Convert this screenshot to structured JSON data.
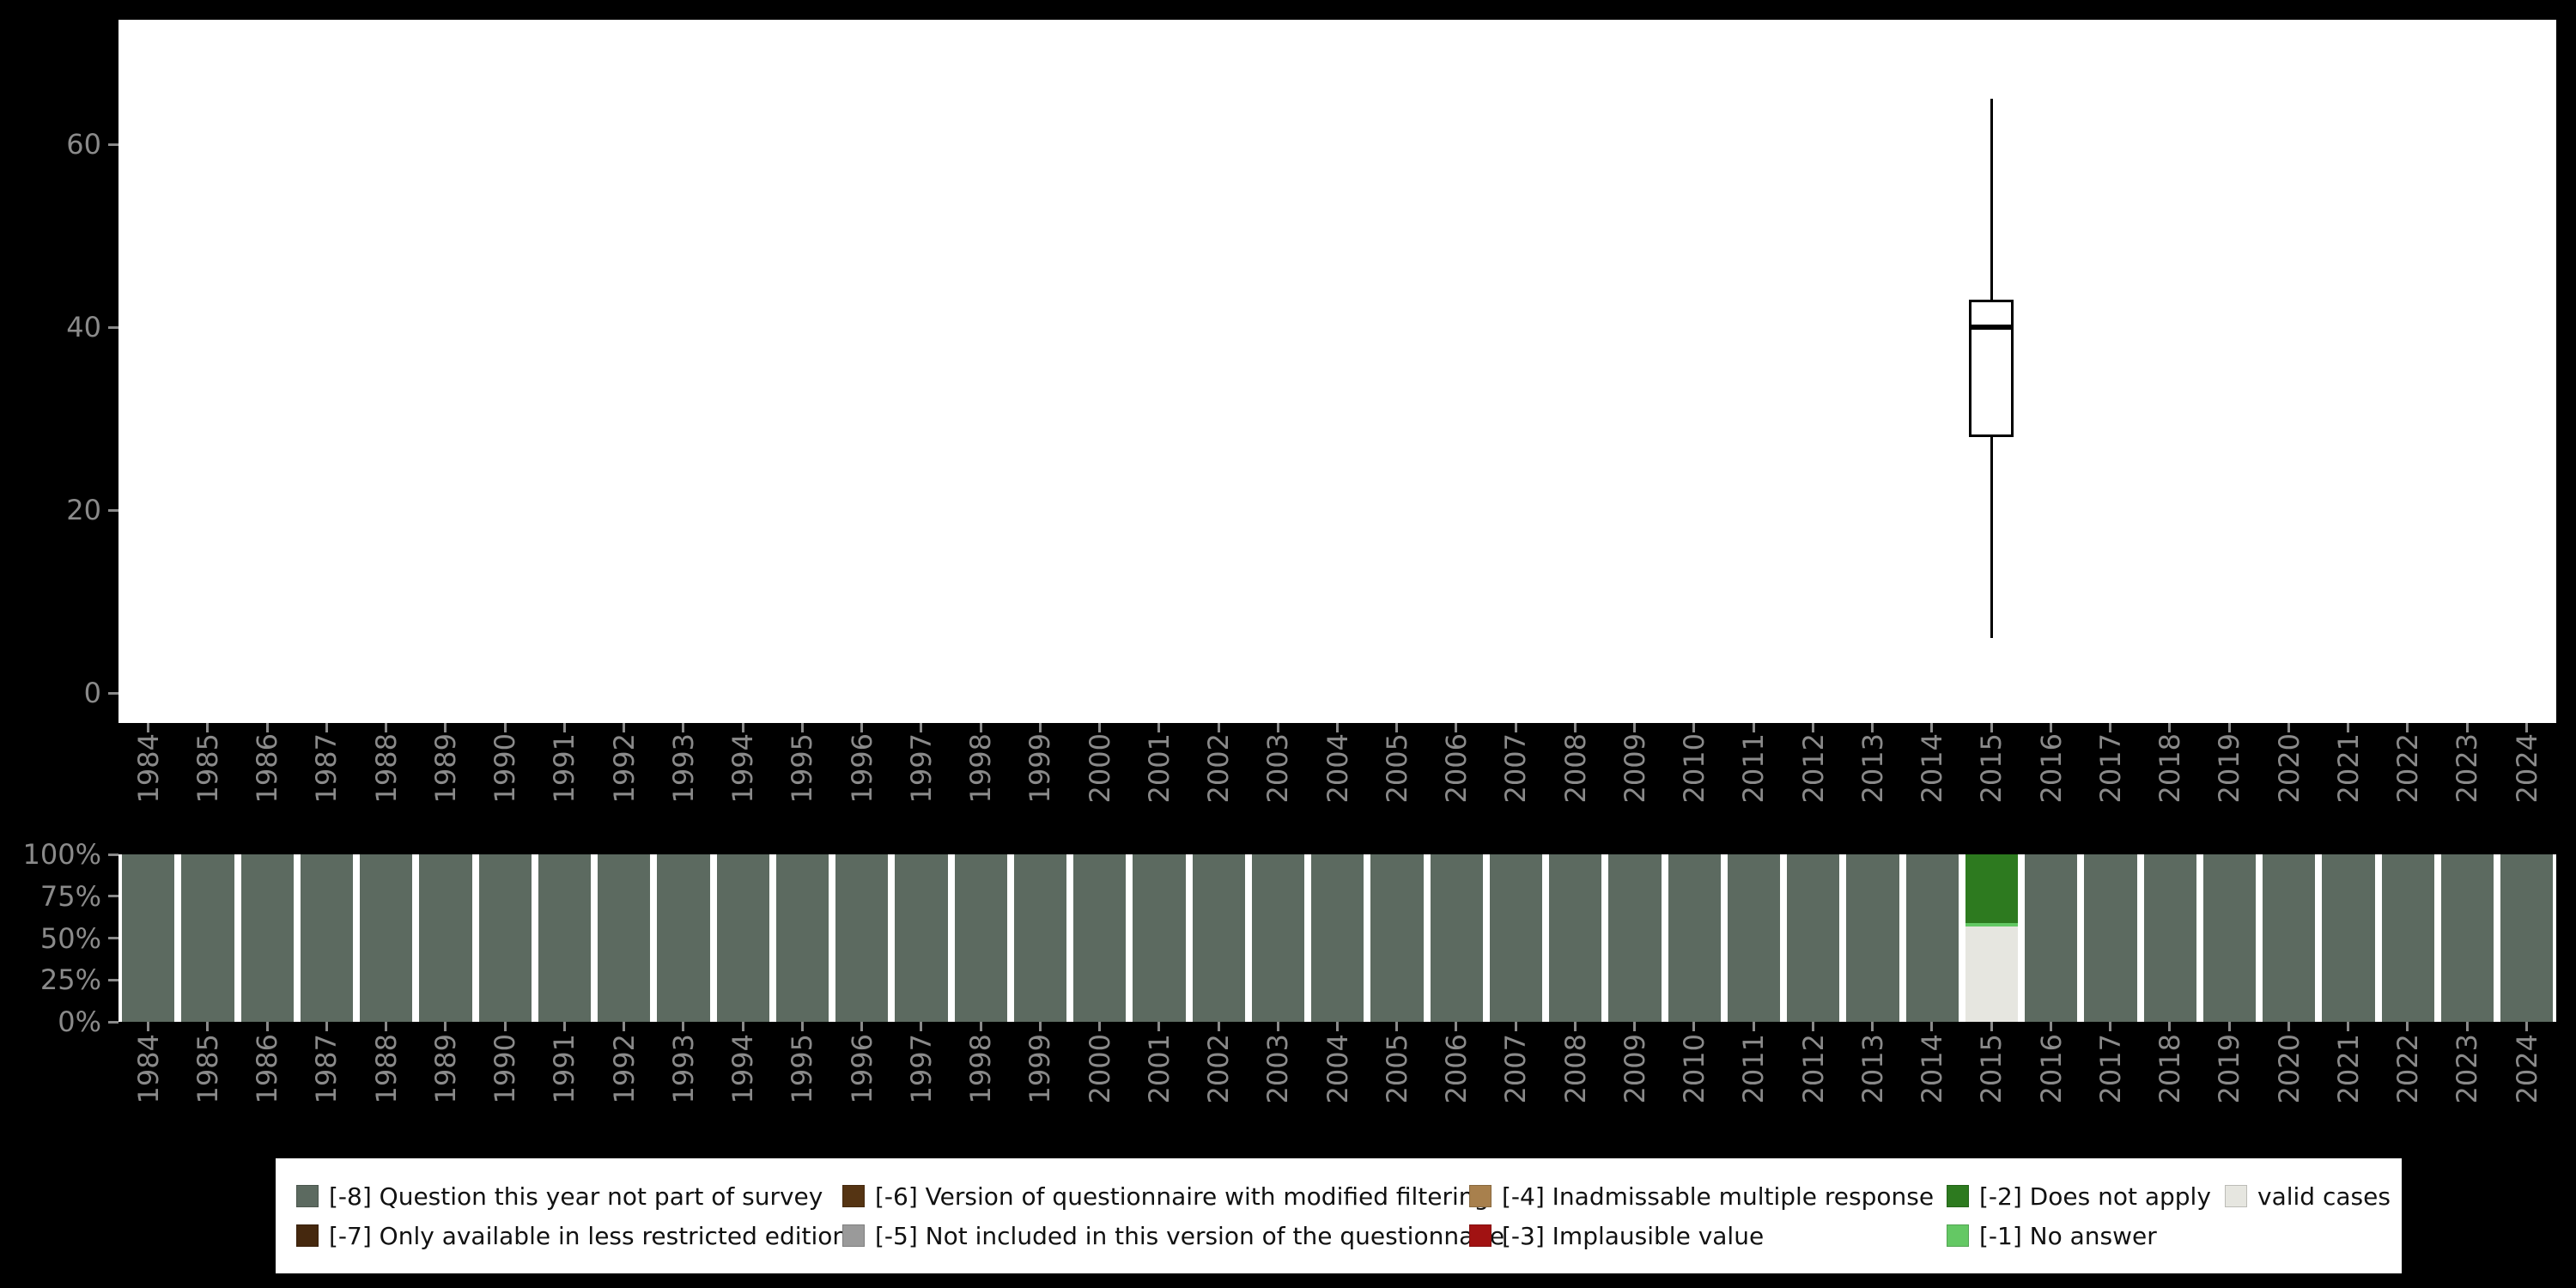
{
  "colors": {
    "background": "#000000",
    "panel": "#ffffff",
    "axis_text": "#8a8a8a",
    "box_stroke": "#000000"
  },
  "years": [
    "1984",
    "1985",
    "1986",
    "1987",
    "1988",
    "1989",
    "1990",
    "1991",
    "1992",
    "1993",
    "1994",
    "1995",
    "1996",
    "1997",
    "1998",
    "1999",
    "2000",
    "2001",
    "2002",
    "2003",
    "2004",
    "2005",
    "2006",
    "2007",
    "2008",
    "2009",
    "2010",
    "2011",
    "2012",
    "2013",
    "2014",
    "2015",
    "2016",
    "2017",
    "2018",
    "2019",
    "2020",
    "2021",
    "2022",
    "2023",
    "2024"
  ],
  "chart_data": [
    {
      "type": "boxplot",
      "title": "",
      "xlabel": "",
      "ylabel": "",
      "x_categories_note": "years 1984-2024, only 2015 has data",
      "ylim": [
        0,
        70
      ],
      "yticks": [
        0,
        20,
        40,
        60
      ],
      "boxes": [
        {
          "year": "2015",
          "min": 6,
          "q1": 28,
          "median": 40,
          "q3": 43,
          "max": 65
        }
      ]
    },
    {
      "type": "bar",
      "stacked": true,
      "units": "percent",
      "title": "",
      "xlabel": "",
      "ylabel": "",
      "yticks": [
        {
          "pct": 100,
          "label": "100%"
        },
        {
          "pct": 75,
          "label": "75%"
        },
        {
          "pct": 50,
          "label": "50%"
        },
        {
          "pct": 25,
          "label": "25%"
        },
        {
          "pct": 0,
          "label": "0%"
        }
      ],
      "categories": [
        "1984",
        "1985",
        "1986",
        "1987",
        "1988",
        "1989",
        "1990",
        "1991",
        "1992",
        "1993",
        "1994",
        "1995",
        "1996",
        "1997",
        "1998",
        "1999",
        "2000",
        "2001",
        "2002",
        "2003",
        "2004",
        "2005",
        "2006",
        "2007",
        "2008",
        "2009",
        "2010",
        "2011",
        "2012",
        "2013",
        "2014",
        "2015",
        "2016",
        "2017",
        "2018",
        "2019",
        "2020",
        "2021",
        "2022",
        "2023",
        "2024"
      ],
      "series": [
        {
          "name": "valid cases",
          "color": "#e6e6e0",
          "values": [
            0,
            0,
            0,
            0,
            0,
            0,
            0,
            0,
            0,
            0,
            0,
            0,
            0,
            0,
            0,
            0,
            0,
            0,
            0,
            0,
            0,
            0,
            0,
            0,
            0,
            0,
            0,
            0,
            0,
            0,
            0,
            57,
            0,
            0,
            0,
            0,
            0,
            0,
            0,
            0,
            0
          ]
        },
        {
          "name": "[-1] No answer",
          "color": "#64c864",
          "values": [
            0,
            0,
            0,
            0,
            0,
            0,
            0,
            0,
            0,
            0,
            0,
            0,
            0,
            0,
            0,
            0,
            0,
            0,
            0,
            0,
            0,
            0,
            0,
            0,
            0,
            0,
            0,
            0,
            0,
            0,
            0,
            2,
            0,
            0,
            0,
            0,
            0,
            0,
            0,
            0,
            0
          ]
        },
        {
          "name": "[-2] Does not apply",
          "color": "#2d7a1f",
          "values": [
            0,
            0,
            0,
            0,
            0,
            0,
            0,
            0,
            0,
            0,
            0,
            0,
            0,
            0,
            0,
            0,
            0,
            0,
            0,
            0,
            0,
            0,
            0,
            0,
            0,
            0,
            0,
            0,
            0,
            0,
            0,
            41,
            0,
            0,
            0,
            0,
            0,
            0,
            0,
            0,
            0
          ]
        },
        {
          "name": "[-8] Question this year not part of survey",
          "color": "#5c6a60",
          "values": [
            100,
            100,
            100,
            100,
            100,
            100,
            100,
            100,
            100,
            100,
            100,
            100,
            100,
            100,
            100,
            100,
            100,
            100,
            100,
            100,
            100,
            100,
            100,
            100,
            100,
            100,
            100,
            100,
            100,
            100,
            100,
            0,
            100,
            100,
            100,
            100,
            100,
            100,
            100,
            100,
            100
          ]
        }
      ]
    }
  ],
  "legend": {
    "columns": [
      [
        {
          "label": "[-8] Question this year not part of survey",
          "color": "#5c6a60"
        },
        {
          "label": "[-7] Only available in less restricted edition",
          "color": "#45280e"
        }
      ],
      [
        {
          "label": "[-6] Version of questionnaire with modified filtering",
          "color": "#553413"
        },
        {
          "label": "[-5] Not included in this version of the questionnaire",
          "color": "#9a9a9a"
        }
      ],
      [
        {
          "label": "[-4] Inadmissable multiple response",
          "color": "#a8804d"
        },
        {
          "label": "[-3] Implausible value",
          "color": "#a11212"
        }
      ],
      [
        {
          "label": "[-2] Does not apply",
          "color": "#2d7a1f"
        },
        {
          "label": "[-1] No answer",
          "color": "#64c864"
        }
      ],
      [
        {
          "label": "valid cases",
          "color": "#e6e6e0"
        }
      ]
    ]
  }
}
